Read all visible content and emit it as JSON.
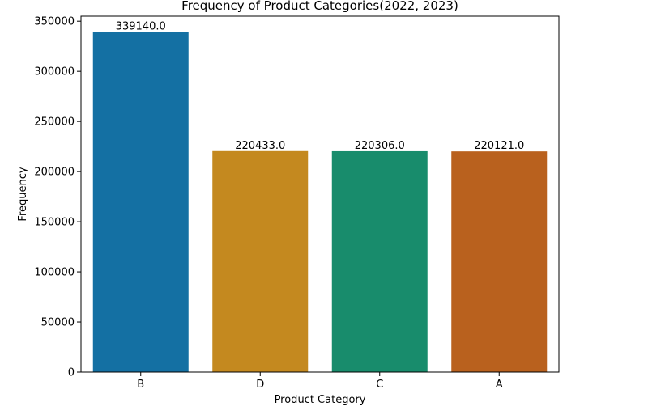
{
  "chart_data": {
    "type": "bar",
    "title": "Frequency of Product Categories(2022, 2023)",
    "xlabel": "Product Category",
    "ylabel": "Frequency",
    "categories": [
      "B",
      "D",
      "C",
      "A"
    ],
    "values": [
      339140.0,
      220433.0,
      220306.0,
      220121.0
    ],
    "value_labels": [
      "339140.0",
      "220433.0",
      "220306.0",
      "220121.0"
    ],
    "colors": [
      "#1470a3",
      "#c4891f",
      "#188c6c",
      "#b9611e"
    ],
    "ylim": [
      0,
      355000
    ],
    "yticks": [
      0,
      50000,
      100000,
      150000,
      200000,
      250000,
      300000,
      350000
    ],
    "ytick_labels": [
      "0",
      "50000",
      "100000",
      "150000",
      "200000",
      "250000",
      "300000",
      "350000"
    ],
    "grid": false,
    "legend": "none"
  }
}
